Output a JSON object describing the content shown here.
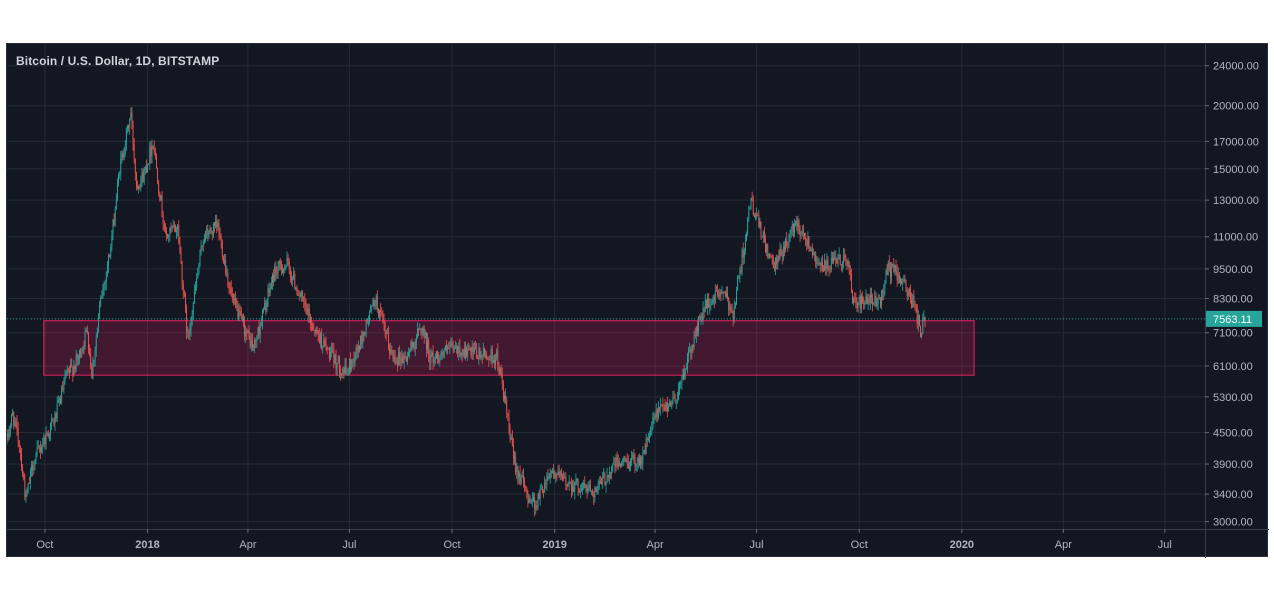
{
  "chart_data": {
    "type": "candlestick",
    "title": "Bitcoin / U.S. Dollar, 1D, BITSTAMP",
    "y_scale": "log",
    "ylim": [
      2900,
      26500
    ],
    "xlim": [
      "2017-08-28",
      "2020-08-06"
    ],
    "y_ticks": [
      "24000.00",
      "20000.00",
      "17000.00",
      "15000.00",
      "13000.00",
      "11000.00",
      "9500.00",
      "8300.00",
      "7100.00",
      "6100.00",
      "5300.00",
      "4500.00",
      "3900.00",
      "3400.00",
      "3000.00"
    ],
    "x_ticks": [
      {
        "label": "Oct",
        "date": "2017-10-01"
      },
      {
        "label": "2018",
        "date": "2018-01-01"
      },
      {
        "label": "Apr",
        "date": "2018-04-01"
      },
      {
        "label": "Jul",
        "date": "2018-07-01"
      },
      {
        "label": "Oct",
        "date": "2018-10-01"
      },
      {
        "label": "2019",
        "date": "2019-01-01"
      },
      {
        "label": "Apr",
        "date": "2019-04-01"
      },
      {
        "label": "Jul",
        "date": "2019-07-01"
      },
      {
        "label": "Oct",
        "date": "2019-10-01"
      },
      {
        "label": "2020",
        "date": "2020-01-01"
      },
      {
        "label": "Apr",
        "date": "2020-04-01"
      },
      {
        "label": "Jul",
        "date": "2020-07-01"
      }
    ],
    "last_price": {
      "value": 7563.11,
      "label": "7563.11"
    },
    "zone": {
      "date_start": "2017-09-30",
      "date_end": "2020-01-12",
      "low": 5850,
      "high": 7500
    },
    "price_path": [
      [
        "2017-08-28",
        4350
      ],
      [
        "2017-09-02",
        4900
      ],
      [
        "2017-09-08",
        4300
      ],
      [
        "2017-09-14",
        3300
      ],
      [
        "2017-09-20",
        3900
      ],
      [
        "2017-09-30",
        4350
      ],
      [
        "2017-10-10",
        4800
      ],
      [
        "2017-10-20",
        5800
      ],
      [
        "2017-10-31",
        6300
      ],
      [
        "2017-11-08",
        7200
      ],
      [
        "2017-11-12",
        5900
      ],
      [
        "2017-11-20",
        8200
      ],
      [
        "2017-11-29",
        10500
      ],
      [
        "2017-12-07",
        15000
      ],
      [
        "2017-12-17",
        19300
      ],
      [
        "2017-12-22",
        14000
      ],
      [
        "2017-12-28",
        14500
      ],
      [
        "2018-01-06",
        17000
      ],
      [
        "2018-01-17",
        11000
      ],
      [
        "2018-01-28",
        11500
      ],
      [
        "2018-02-06",
        6900
      ],
      [
        "2018-02-20",
        11000
      ],
      [
        "2018-03-05",
        11500
      ],
      [
        "2018-03-18",
        8200
      ],
      [
        "2018-04-06",
        6600
      ],
      [
        "2018-04-25",
        9400
      ],
      [
        "2018-05-06",
        9700
      ],
      [
        "2018-05-28",
        7400
      ],
      [
        "2018-06-12",
        6500
      ],
      [
        "2018-06-28",
        5900
      ],
      [
        "2018-07-10",
        6700
      ],
      [
        "2018-07-24",
        8300
      ],
      [
        "2018-08-08",
        6400
      ],
      [
        "2018-08-20",
        6300
      ],
      [
        "2018-09-04",
        7300
      ],
      [
        "2018-09-12",
        6300
      ],
      [
        "2018-10-01",
        6600
      ],
      [
        "2018-10-20",
        6450
      ],
      [
        "2018-11-10",
        6350
      ],
      [
        "2018-11-15",
        5600
      ],
      [
        "2018-11-25",
        4000
      ],
      [
        "2018-12-07",
        3400
      ],
      [
        "2018-12-15",
        3250
      ],
      [
        "2018-12-28",
        3800
      ],
      [
        "2019-01-10",
        3600
      ],
      [
        "2019-02-07",
        3450
      ],
      [
        "2019-02-24",
        3900
      ],
      [
        "2019-03-20",
        4000
      ],
      [
        "2019-04-02",
        4900
      ],
      [
        "2019-04-20",
        5300
      ],
      [
        "2019-05-14",
        7900
      ],
      [
        "2019-05-30",
        8600
      ],
      [
        "2019-06-10",
        7800
      ],
      [
        "2019-06-26",
        12900
      ],
      [
        "2019-07-16",
        9500
      ],
      [
        "2019-08-06",
        11800
      ],
      [
        "2019-08-29",
        9500
      ],
      [
        "2019-09-20",
        10000
      ],
      [
        "2019-09-26",
        8100
      ],
      [
        "2019-10-20",
        8200
      ],
      [
        "2019-10-26",
        9500
      ],
      [
        "2019-11-05",
        9300
      ],
      [
        "2019-11-20",
        8000
      ],
      [
        "2019-11-25",
        7100
      ],
      [
        "2019-11-29",
        7563
      ]
    ]
  }
}
